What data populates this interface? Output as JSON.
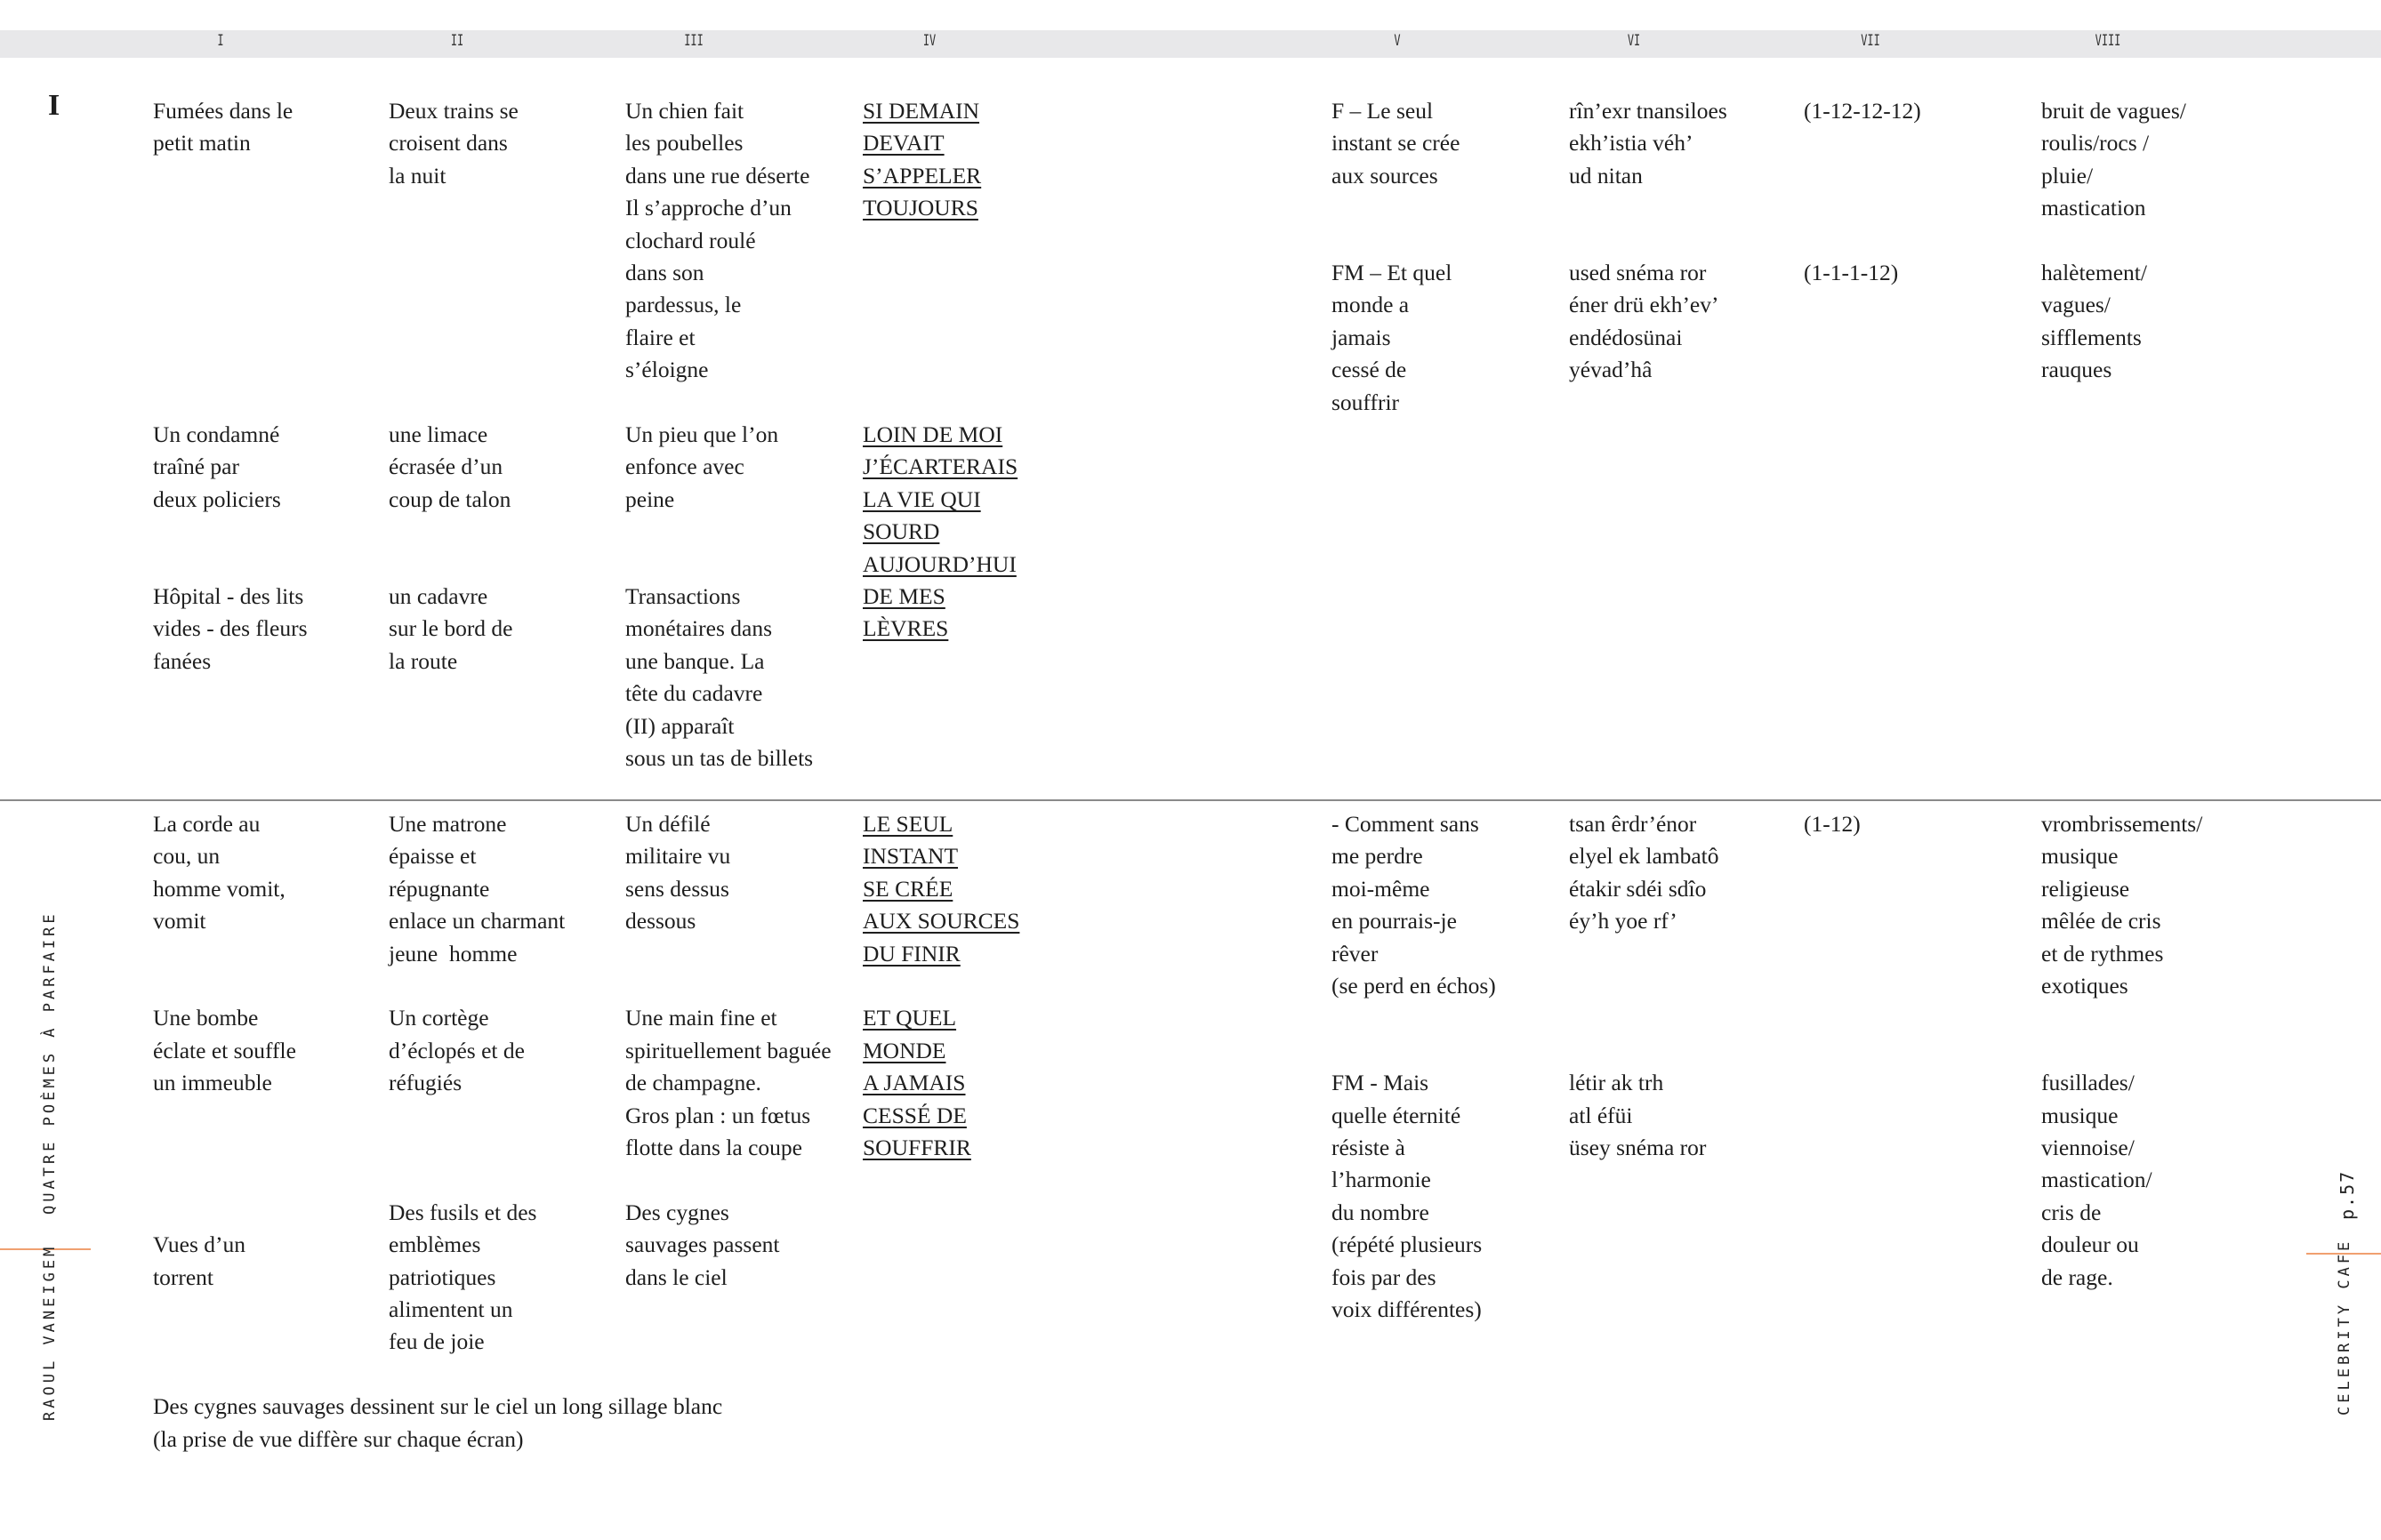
{
  "column_headers": [
    "I",
    "II",
    "III",
    "IV",
    "V",
    "VI",
    "VII",
    "VIII"
  ],
  "section_label": "I",
  "sections": [
    {
      "blocks": [
        {
          "col": 0,
          "lines": [
            "Fumées dans le",
            "petit matin"
          ]
        },
        {
          "col": 0,
          "lines": [
            "Un condamné",
            "traîné par",
            "deux policiers"
          ]
        },
        {
          "col": 0,
          "lines": [
            "Hôpital - des lits",
            "vides - des fleurs",
            "fanées"
          ]
        },
        {
          "col": 1,
          "lines": [
            "Deux trains se",
            "croisent dans",
            "la nuit"
          ]
        },
        {
          "col": 1,
          "lines": [
            "une limace",
            "écrasée d’un",
            "coup de talon"
          ]
        },
        {
          "col": 1,
          "lines": [
            "un cadavre",
            "sur le bord de",
            "la route"
          ]
        },
        {
          "col": 2,
          "lines": [
            "Un chien fait",
            "les poubelles",
            "dans une rue déserte",
            "Il s’approche d’un",
            "clochard roulé",
            "dans son",
            "pardessus, le",
            "flaire et",
            "s’éloigne"
          ]
        },
        {
          "col": 2,
          "lines": [
            "Un pieu que l’on",
            "enfonce avec",
            "peine"
          ]
        },
        {
          "col": 2,
          "lines": [
            "Transactions",
            "monétaires dans",
            "une banque. La",
            "tête du cadavre",
            "(II) apparaît",
            "sous un tas de billets"
          ]
        },
        {
          "col": 3,
          "underline": true,
          "lines": [
            "SI DEMAIN",
            "DEVAIT",
            "S’APPELER",
            "TOUJOURS"
          ]
        },
        {
          "col": 3,
          "underline": true,
          "lines": [
            "LOIN DE MOI",
            "J’ÉCARTERAIS",
            "LA VIE QUI",
            "SOURD",
            "AUJOURD’HUI",
            "DE MES",
            "LÈVRES"
          ]
        },
        {
          "col": 4,
          "lines": [
            "F – Le seul",
            "instant se crée",
            "aux sources"
          ]
        },
        {
          "col": 4,
          "lines": [
            "FM – Et quel",
            "monde a",
            "jamais",
            "cessé de",
            "souffrir"
          ]
        },
        {
          "col": 5,
          "lines": [
            "rîn’exr tnansiloes",
            "ekh’istia véh’",
            "ud nitan"
          ]
        },
        {
          "col": 5,
          "lines": [
            "used snéma ror",
            "éner drü ekh’ev’",
            "endédosünai",
            "yévad’hâ"
          ]
        },
        {
          "col": 6,
          "lines": [
            "(1-12-12-12)"
          ]
        },
        {
          "col": 6,
          "lines": [
            "(1-1-1-12)"
          ]
        },
        {
          "col": 7,
          "lines": [
            "bruit de vagues/",
            "roulis/rocs /",
            "pluie/",
            "mastication"
          ]
        },
        {
          "col": 7,
          "lines": [
            "halètement/",
            "vagues/",
            "sifflements",
            "rauques"
          ]
        }
      ]
    },
    {
      "blocks": [
        {
          "col": 0,
          "lines": [
            "La corde au",
            "cou, un",
            "homme vomit,",
            "vomit"
          ]
        },
        {
          "col": 0,
          "lines": [
            "Une bombe",
            "éclate et souffle",
            "un immeuble"
          ]
        },
        {
          "col": 0,
          "lines": [
            "Vues d’un",
            "torrent"
          ]
        },
        {
          "col": 0,
          "lines": [
            "Des cygnes sauvages dessinent sur le ciel un long sillage blanc",
            "(la prise de vue diffère sur chaque écran)"
          ]
        },
        {
          "col": 1,
          "lines": [
            "Une matrone",
            "épaisse et",
            "répugnante",
            "enlace un charmant",
            "jeune  homme"
          ]
        },
        {
          "col": 1,
          "lines": [
            "Un cortège",
            "d’éclopés et de",
            "réfugiés"
          ]
        },
        {
          "col": 1,
          "lines": [
            "Des fusils et des",
            "emblèmes",
            "patriotiques",
            "alimentent un",
            "feu de joie"
          ]
        },
        {
          "col": 2,
          "lines": [
            "Un défilé",
            "militaire vu",
            "sens dessus",
            "dessous"
          ]
        },
        {
          "col": 2,
          "lines": [
            "Une main fine et",
            "spirituellement baguée",
            "de champagne.",
            "Gros plan : un fœtus",
            "flotte dans la coupe"
          ]
        },
        {
          "col": 2,
          "lines": [
            "Des cygnes",
            "sauvages passent",
            "dans le ciel"
          ]
        },
        {
          "col": 3,
          "underline": true,
          "lines": [
            "LE SEUL",
            "INSTANT",
            "SE CRÉE",
            "AUX SOURCES",
            "DU FINIR"
          ]
        },
        {
          "col": 3,
          "underline": true,
          "lines": [
            "ET QUEL",
            "MONDE",
            "A JAMAIS",
            "CESSÉ DE",
            "SOUFFRIR"
          ]
        },
        {
          "col": 4,
          "lines": [
            "- Comment sans",
            "me perdre",
            "moi-même",
            "en pourrais-je",
            "rêver",
            "(se perd en échos)"
          ]
        },
        {
          "col": 4,
          "lines": [
            "FM - Mais",
            "quelle éternité",
            "résiste à",
            "l’harmonie",
            "du nombre",
            "(répété plusieurs",
            "fois par des",
            "voix différentes)"
          ]
        },
        {
          "col": 5,
          "lines": [
            "tsan êrdr’énor",
            "elyel ek lambatô",
            "étakir sdéi sdîo",
            "éy’h yoe rf’"
          ]
        },
        {
          "col": 5,
          "lines": [
            "létir ak trh",
            "atl éfüi",
            "üsey snéma ror"
          ]
        },
        {
          "col": 6,
          "lines": [
            "(1-12)"
          ]
        },
        {
          "col": 7,
          "lines": [
            "vrombrissements/",
            "musique",
            "religieuse",
            "mêlée de cris",
            "et de rythmes",
            "exotiques"
          ]
        },
        {
          "col": 7,
          "lines": [
            "fusillades/",
            "musique",
            "viennoise/",
            "mastication/",
            "cris de",
            "douleur ou",
            "de rage."
          ]
        }
      ]
    }
  ],
  "margin_left": {
    "title": "QUATRE POÈMES À PARFAIRE",
    "author": "RAOUL VANEIGEM"
  },
  "margin_right": {
    "page": "p.57",
    "publication": "CELEBRITY CAFE"
  },
  "colors": {
    "accent_rule": "#f0a070",
    "header_bar": "#e8e8ea",
    "text": "#1e1e1e"
  }
}
